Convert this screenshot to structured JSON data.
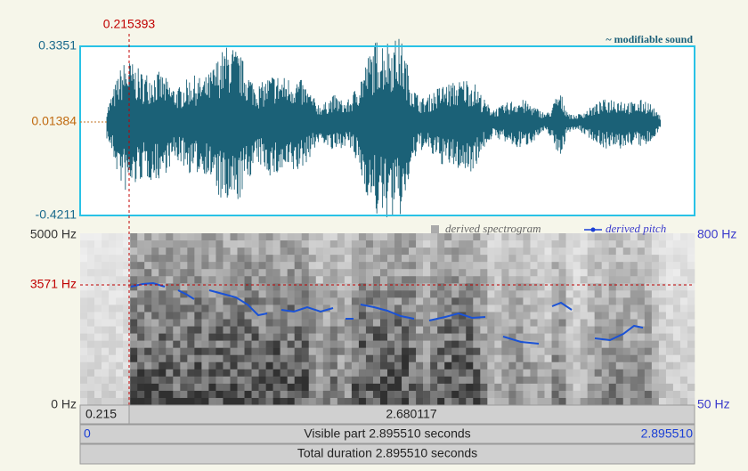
{
  "cursor_time": "0.215393",
  "sound": {
    "title": "~ modifiable sound",
    "max": "0.3351",
    "mid": "0.01384",
    "min": "-0.4211"
  },
  "spectrogram": {
    "top": "5000 Hz",
    "cursor": "3571 Hz",
    "bottom": "0 Hz",
    "legend_spectrogram": "derived spectrogram",
    "legend_pitch": "derived pitch",
    "pitch_top": "800 Hz",
    "pitch_bottom": "50 Hz"
  },
  "bars": {
    "left_time": "0.215",
    "selection": "2.680117",
    "visible_start": "0",
    "visible": "Visible part 2.895510 seconds",
    "visible_end": "2.895510",
    "total": "Total duration 2.895510 seconds"
  }
}
